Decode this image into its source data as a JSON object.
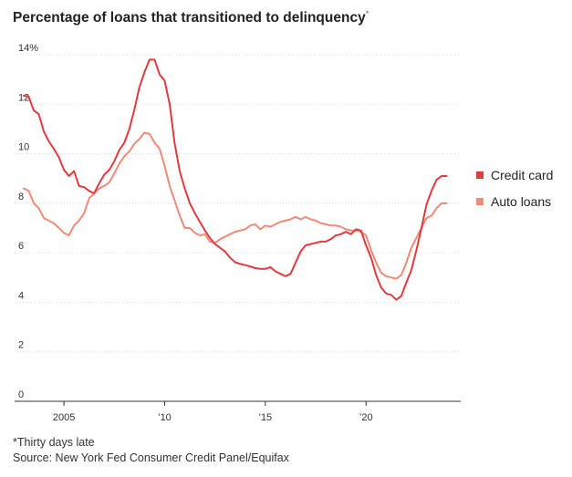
{
  "title": "Percentage of loans that transitioned to delinquency",
  "title_mark": "*",
  "footnote": "*Thirty days late",
  "source": "Source: New York Fed Consumer Credit Panel/Equifax",
  "colors": {
    "credit_card": "#e23a3f",
    "auto_loans": "#f08a78",
    "grid": "#dcdcdc",
    "axis": "#333333"
  },
  "chart_data": {
    "type": "line",
    "title": "Percentage of loans that transitioned to delinquency",
    "xlabel": "",
    "ylabel": "",
    "xlim": [
      2002.55,
      2024.7
    ],
    "ylim": [
      0,
      14
    ],
    "grid": true,
    "legend_position": "right",
    "y_ticks": [
      {
        "value": 14,
        "label": "14%"
      },
      {
        "value": 12,
        "label": "12"
      },
      {
        "value": 10,
        "label": "10"
      },
      {
        "value": 8,
        "label": "8"
      },
      {
        "value": 6,
        "label": "6"
      },
      {
        "value": 4,
        "label": "4"
      },
      {
        "value": 2,
        "label": "2"
      },
      {
        "value": 0,
        "label": "0"
      }
    ],
    "x_ticks": [
      {
        "value": 2005,
        "label": "2005"
      },
      {
        "value": 2010,
        "label": "’10"
      },
      {
        "value": 2015,
        "label": "’15"
      },
      {
        "value": 2020,
        "label": "’20"
      }
    ],
    "series": [
      {
        "name": "Credit card",
        "color": "#e23a3f",
        "x": [
          2003.0,
          2003.25,
          2003.5,
          2003.75,
          2004.0,
          2004.25,
          2004.5,
          2004.75,
          2005.0,
          2005.25,
          2005.5,
          2005.75,
          2006.0,
          2006.25,
          2006.5,
          2006.75,
          2007.0,
          2007.25,
          2007.5,
          2007.75,
          2008.0,
          2008.25,
          2008.5,
          2008.75,
          2009.0,
          2009.25,
          2009.5,
          2009.75,
          2010.0,
          2010.25,
          2010.5,
          2010.75,
          2011.0,
          2011.25,
          2011.5,
          2011.75,
          2012.0,
          2012.25,
          2012.5,
          2012.75,
          2013.0,
          2013.25,
          2013.5,
          2013.75,
          2014.0,
          2014.25,
          2014.5,
          2014.75,
          2015.0,
          2015.25,
          2015.5,
          2015.75,
          2016.0,
          2016.25,
          2016.5,
          2016.75,
          2017.0,
          2017.25,
          2017.5,
          2017.75,
          2018.0,
          2018.25,
          2018.5,
          2018.75,
          2019.0,
          2019.25,
          2019.5,
          2019.75,
          2020.0,
          2020.25,
          2020.5,
          2020.75,
          2021.0,
          2021.25,
          2021.5,
          2021.75,
          2022.0,
          2022.25,
          2022.5,
          2022.75,
          2023.0,
          2023.25,
          2023.5,
          2023.75,
          2024.0
        ],
        "values": [
          12.35,
          12.3,
          11.75,
          11.6,
          10.9,
          10.5,
          10.2,
          9.85,
          9.35,
          9.1,
          9.3,
          8.7,
          8.65,
          8.5,
          8.4,
          8.8,
          9.15,
          9.35,
          9.7,
          10.15,
          10.45,
          11.0,
          11.8,
          12.7,
          13.3,
          13.8,
          13.8,
          13.2,
          12.95,
          12.0,
          10.4,
          9.3,
          8.6,
          8.0,
          7.6,
          7.25,
          6.9,
          6.6,
          6.35,
          6.2,
          6.05,
          5.8,
          5.62,
          5.55,
          5.5,
          5.45,
          5.38,
          5.35,
          5.35,
          5.42,
          5.25,
          5.15,
          5.05,
          5.15,
          5.6,
          6.05,
          6.3,
          6.35,
          6.4,
          6.45,
          6.45,
          6.55,
          6.7,
          6.75,
          6.85,
          6.75,
          6.95,
          6.9,
          6.3,
          5.8,
          5.1,
          4.6,
          4.35,
          4.3,
          4.1,
          4.25,
          4.8,
          5.3,
          6.1,
          7.0,
          7.95,
          8.5,
          8.95,
          9.1,
          9.1
        ]
      },
      {
        "name": "Auto loans",
        "color": "#f08a78",
        "x": [
          2003.0,
          2003.25,
          2003.5,
          2003.75,
          2004.0,
          2004.25,
          2004.5,
          2004.75,
          2005.0,
          2005.25,
          2005.5,
          2005.75,
          2006.0,
          2006.25,
          2006.5,
          2006.75,
          2007.0,
          2007.25,
          2007.5,
          2007.75,
          2008.0,
          2008.25,
          2008.5,
          2008.75,
          2009.0,
          2009.25,
          2009.5,
          2009.75,
          2010.0,
          2010.25,
          2010.5,
          2010.75,
          2011.0,
          2011.25,
          2011.5,
          2011.75,
          2012.0,
          2012.25,
          2012.5,
          2012.75,
          2013.0,
          2013.25,
          2013.5,
          2013.75,
          2014.0,
          2014.25,
          2014.5,
          2014.75,
          2015.0,
          2015.25,
          2015.5,
          2015.75,
          2016.0,
          2016.25,
          2016.5,
          2016.75,
          2017.0,
          2017.25,
          2017.5,
          2017.75,
          2018.0,
          2018.25,
          2018.5,
          2018.75,
          2019.0,
          2019.25,
          2019.5,
          2019.75,
          2020.0,
          2020.25,
          2020.5,
          2020.75,
          2021.0,
          2021.25,
          2021.5,
          2021.75,
          2022.0,
          2022.25,
          2022.5,
          2022.75,
          2023.0,
          2023.25,
          2023.5,
          2023.75,
          2024.0
        ],
        "values": [
          8.6,
          8.5,
          8.0,
          7.8,
          7.4,
          7.3,
          7.2,
          7.0,
          6.8,
          6.7,
          7.1,
          7.3,
          7.6,
          8.2,
          8.4,
          8.6,
          8.7,
          8.85,
          9.2,
          9.6,
          9.9,
          10.1,
          10.4,
          10.6,
          10.85,
          10.8,
          10.45,
          10.2,
          9.5,
          8.7,
          8.1,
          7.5,
          7.0,
          7.0,
          6.8,
          6.7,
          6.75,
          6.45,
          6.4,
          6.55,
          6.65,
          6.75,
          6.85,
          6.9,
          6.95,
          7.1,
          7.15,
          6.95,
          7.1,
          7.05,
          7.15,
          7.25,
          7.3,
          7.35,
          7.45,
          7.35,
          7.45,
          7.35,
          7.3,
          7.2,
          7.15,
          7.1,
          7.1,
          7.05,
          6.95,
          6.9,
          6.9,
          6.85,
          6.7,
          6.1,
          5.6,
          5.2,
          5.05,
          5.0,
          4.95,
          5.1,
          5.6,
          6.2,
          6.6,
          7.0,
          7.4,
          7.5,
          7.8,
          8.0,
          8.0
        ]
      }
    ]
  }
}
